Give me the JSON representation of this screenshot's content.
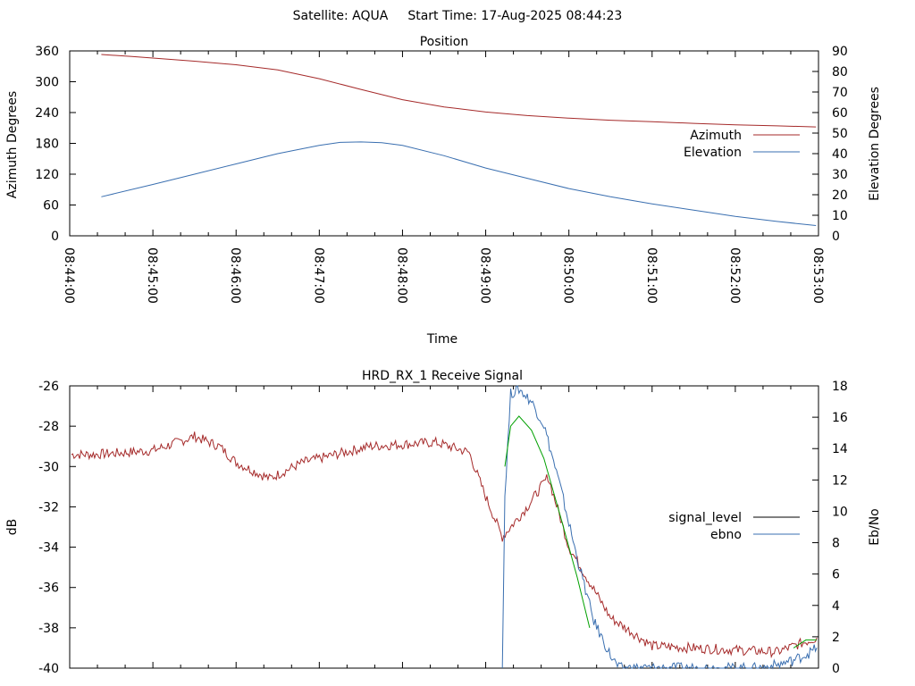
{
  "header": {
    "satellite": "Satellite: AQUA",
    "start_time": "Start Time: 17-Aug-2025 08:44:23"
  },
  "chart_data": [
    {
      "type": "line",
      "title": "Position",
      "xlabel": "Time",
      "ylabel": "Azimuth Degrees",
      "y2label": "Elevation Degrees",
      "x_ticks": [
        "08:44:00",
        "08:45:00",
        "08:46:00",
        "08:47:00",
        "08:48:00",
        "08:49:00",
        "08:50:00",
        "08:51:00",
        "08:52:00",
        "08:53:00"
      ],
      "xlim_minutes": [
        0,
        9
      ],
      "ylim": [
        0,
        360
      ],
      "y_ticks": [
        0,
        60,
        120,
        180,
        240,
        300,
        360
      ],
      "y2lim": [
        0,
        90
      ],
      "y2_ticks": [
        0,
        10,
        20,
        30,
        40,
        50,
        60,
        70,
        80,
        90
      ],
      "legend_position": "right",
      "series": [
        {
          "name": "Azimuth",
          "axis": "y",
          "color": "#a52a2a",
          "x": [
            0.38,
            0.75,
            1.0,
            1.5,
            2.0,
            2.5,
            3.0,
            3.5,
            4.0,
            4.5,
            5.0,
            5.5,
            6.0,
            6.5,
            7.0,
            7.5,
            8.0,
            8.5,
            8.97
          ],
          "values": [
            353,
            349,
            346,
            340,
            333,
            323,
            306,
            285,
            265,
            251,
            241,
            234,
            229,
            225,
            222,
            219,
            216,
            214,
            212
          ]
        },
        {
          "name": "Elevation",
          "axis": "y2",
          "color": "#3a6fb0",
          "x": [
            0.38,
            1.0,
            1.5,
            2.0,
            2.5,
            3.0,
            3.25,
            3.5,
            3.75,
            4.0,
            4.5,
            5.0,
            5.5,
            6.0,
            6.5,
            7.0,
            7.5,
            8.0,
            8.5,
            8.97
          ],
          "values": [
            19,
            25,
            30,
            35,
            40,
            44,
            45.5,
            45.7,
            45.3,
            44,
            39,
            33,
            28,
            23,
            19,
            15.5,
            12.5,
            9.5,
            7,
            5
          ]
        }
      ]
    },
    {
      "type": "line",
      "title": "HRD_RX_1 Receive Signal",
      "ylabel": "dB",
      "y2label": "Eb/No",
      "xlim_minutes": [
        0,
        9
      ],
      "ylim": [
        -40,
        -26
      ],
      "y_ticks": [
        -40,
        -38,
        -36,
        -34,
        -32,
        -30,
        -28,
        -26
      ],
      "y2lim": [
        0,
        18
      ],
      "y2_ticks": [
        0,
        2,
        4,
        6,
        8,
        10,
        12,
        14,
        16,
        18
      ],
      "legend_position": "right",
      "series": [
        {
          "name": "signal_level",
          "axis": "y",
          "color": "#a52a2a",
          "x": [
            0.02,
            0.3,
            0.7,
            1.0,
            1.3,
            1.5,
            1.8,
            2.0,
            2.4,
            2.8,
            3.2,
            3.6,
            4.0,
            4.4,
            4.8,
            5.0,
            5.2,
            5.5,
            5.75,
            6.0,
            6.5,
            7.0,
            7.5,
            8.0,
            8.5,
            8.98
          ],
          "values": [
            -29.4,
            -29.4,
            -29.3,
            -29.2,
            -28.8,
            -28.5,
            -29.0,
            -29.8,
            -30.6,
            -29.8,
            -29.4,
            -29.0,
            -28.9,
            -28.8,
            -29.3,
            -31.5,
            -33.5,
            -32.0,
            -30.5,
            -34.0,
            -37.5,
            -38.9,
            -39.0,
            -39.1,
            -39.2,
            -38.5
          ]
        },
        {
          "name": "ebno",
          "axis": "y2",
          "color": "#3a6fb0",
          "x": [
            5.2,
            5.23,
            5.3,
            5.4,
            5.55,
            5.7,
            5.9,
            6.1,
            6.3,
            6.5,
            6.6,
            8.3,
            8.5,
            8.7,
            8.9,
            8.98
          ],
          "values": [
            0,
            11,
            17.5,
            17.8,
            17.0,
            15.5,
            11.5,
            7.0,
            3.0,
            0.8,
            0,
            0,
            0.2,
            0.5,
            1.0,
            1.3
          ]
        }
      ],
      "overlap_color": "#00a000",
      "overlap_segments": [
        {
          "x": [
            5.23,
            5.3,
            5.4,
            5.55,
            5.7,
            5.9,
            6.1,
            6.25
          ],
          "values": [
            -30.0,
            -28.0,
            -27.5,
            -28.2,
            -29.6,
            -32.5,
            -35.5,
            -38.0
          ]
        },
        {
          "x": [
            8.7,
            8.85,
            8.98
          ],
          "values": [
            -39.0,
            -38.6,
            -38.6
          ]
        }
      ]
    }
  ]
}
